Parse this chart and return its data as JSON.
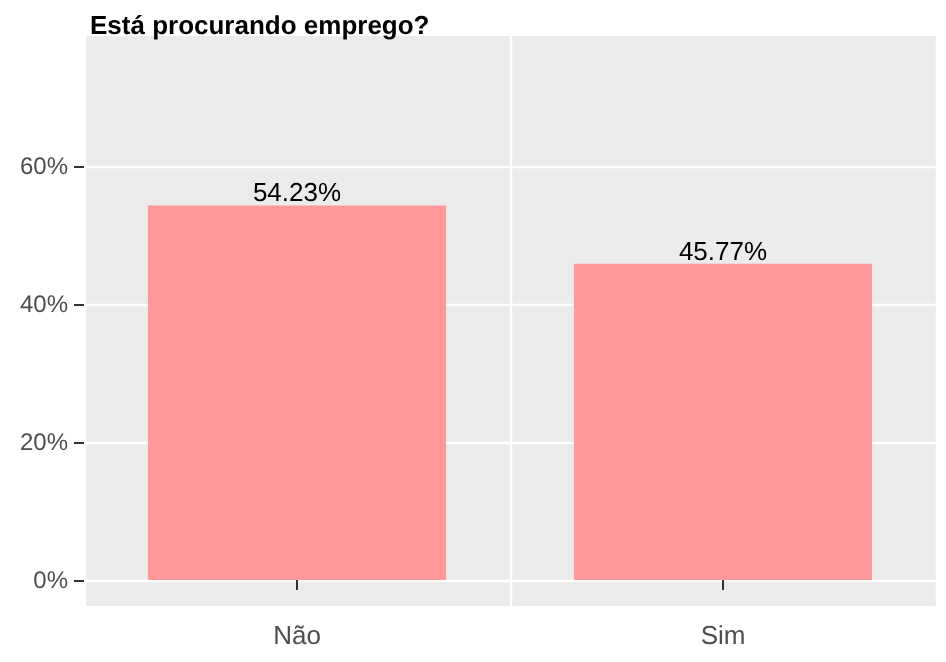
{
  "chart_data": {
    "type": "bar",
    "title": "Está procurando emprego?",
    "categories": [
      "Não",
      "Sim"
    ],
    "values": [
      54.23,
      45.77
    ],
    "color": "#ff9999",
    "value_labels": [
      "54.23%",
      "45.77%"
    ],
    "ylim": [
      -3.75,
      78.75
    ],
    "yticks": [
      {
        "value": 0,
        "label": "0%"
      },
      {
        "value": 20,
        "label": "20%"
      },
      {
        "value": 40,
        "label": "40%"
      },
      {
        "value": 60,
        "label": "60%"
      }
    ],
    "grid": true
  }
}
